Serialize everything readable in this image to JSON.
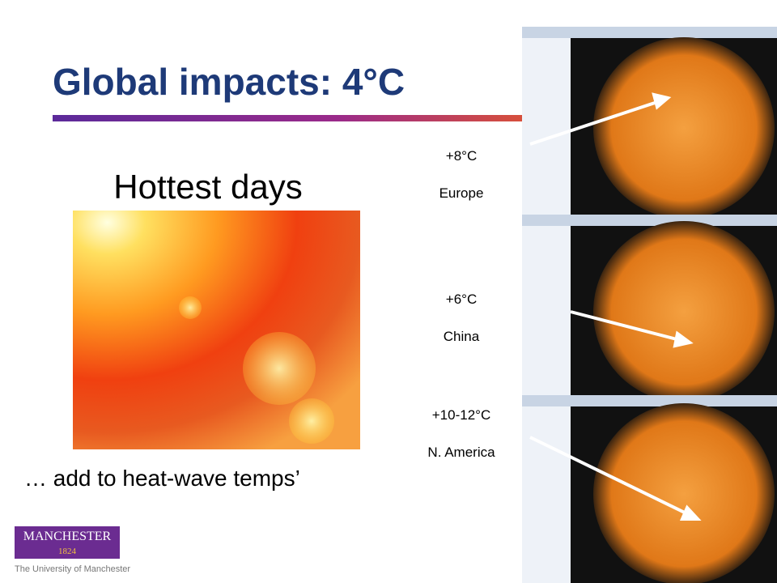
{
  "title": "Global impacts: 4°C",
  "subtitle": "Hottest days",
  "caption": "… add to heat-wave temps’",
  "regions": [
    {
      "change": "+8°C",
      "name": "Europe"
    },
    {
      "change": "+6°C",
      "name": "China"
    },
    {
      "change": "+10-12°C",
      "name": "N. America"
    }
  ],
  "logo": {
    "name": "MANCHESTER",
    "year": "1824",
    "tagline": "The University of Manchester"
  }
}
